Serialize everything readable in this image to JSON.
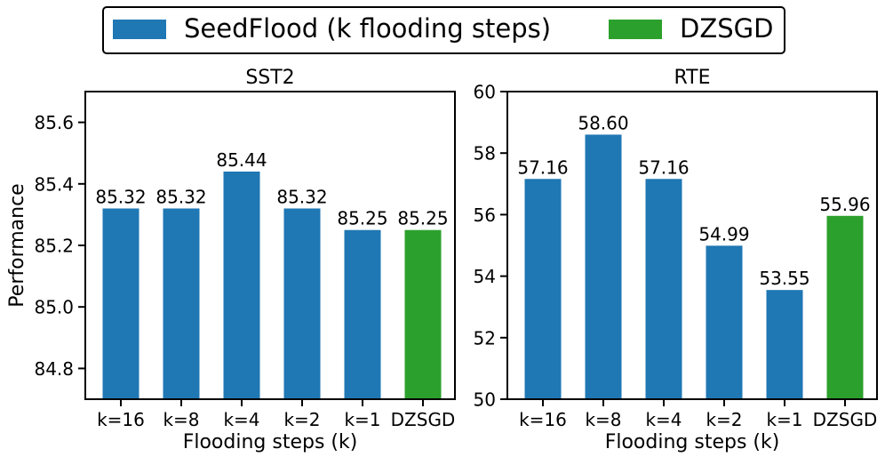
{
  "legend": {
    "items": [
      {
        "label": "SeedFlood (k flooding steps)",
        "color": "#1f77b4"
      },
      {
        "label": "DZSGD",
        "color": "#2ca02c"
      }
    ]
  },
  "colors": {
    "seedflood": "#1f77b4",
    "dzsgd": "#2ca02c"
  },
  "chart_data": [
    {
      "type": "bar",
      "title": "SST2",
      "xlabel": "Flooding steps (k)",
      "ylabel": "Performance",
      "categories": [
        "k=16",
        "k=8",
        "k=4",
        "k=2",
        "k=1",
        "DZSGD"
      ],
      "values": [
        85.32,
        85.32,
        85.44,
        85.32,
        85.25,
        85.25
      ],
      "value_labels": [
        "85.32",
        "85.32",
        "85.44",
        "85.32",
        "85.25",
        "85.25"
      ],
      "series_of_bar": [
        "SeedFlood (k flooding steps)",
        "SeedFlood (k flooding steps)",
        "SeedFlood (k flooding steps)",
        "SeedFlood (k flooding steps)",
        "SeedFlood (k flooding steps)",
        "DZSGD"
      ],
      "ylim": [
        84.7,
        85.7
      ],
      "yticks": [
        84.8,
        85.0,
        85.2,
        85.4,
        85.6
      ],
      "ytick_labels": [
        "84.8",
        "85.0",
        "85.2",
        "85.4",
        "85.6"
      ],
      "grid": false
    },
    {
      "type": "bar",
      "title": "RTE",
      "xlabel": "Flooding steps (k)",
      "ylabel": "",
      "categories": [
        "k=16",
        "k=8",
        "k=4",
        "k=2",
        "k=1",
        "DZSGD"
      ],
      "values": [
        57.16,
        58.6,
        57.16,
        54.99,
        53.55,
        55.96
      ],
      "value_labels": [
        "57.16",
        "58.60",
        "57.16",
        "54.99",
        "53.55",
        "55.96"
      ],
      "series_of_bar": [
        "SeedFlood (k flooding steps)",
        "SeedFlood (k flooding steps)",
        "SeedFlood (k flooding steps)",
        "SeedFlood (k flooding steps)",
        "SeedFlood (k flooding steps)",
        "DZSGD"
      ],
      "ylim": [
        50,
        60
      ],
      "yticks": [
        50,
        52,
        54,
        56,
        58,
        60
      ],
      "ytick_labels": [
        "50",
        "52",
        "54",
        "56",
        "58",
        "60"
      ],
      "grid": false
    }
  ]
}
